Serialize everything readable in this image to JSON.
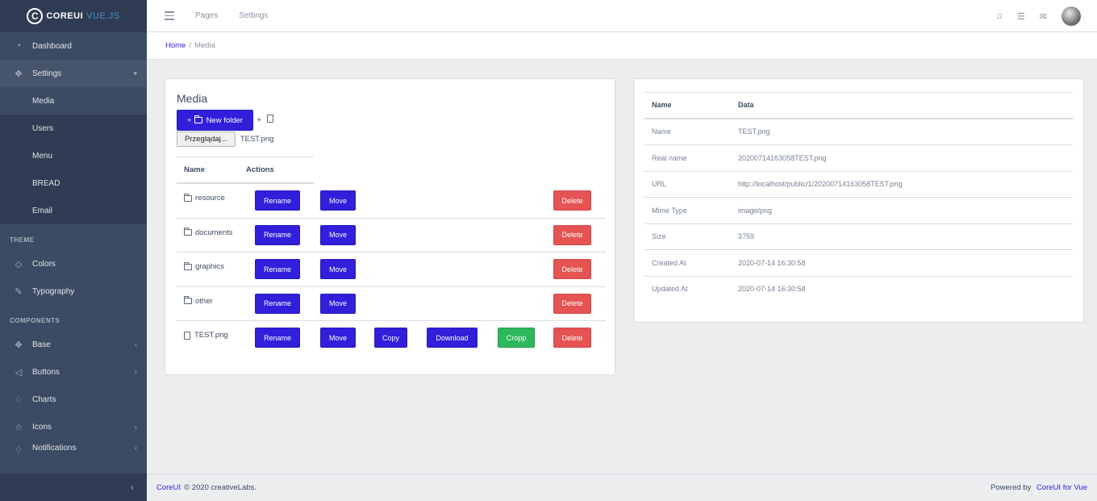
{
  "brand": {
    "core": "COREUI",
    "vue": "VUE.JS"
  },
  "sidebar": {
    "items_top": [
      {
        "label": "Dashboard",
        "icon": "speedometer-icon"
      },
      {
        "label": "Settings",
        "icon": "puzzle-icon"
      }
    ],
    "settings_children": [
      "Media",
      "Users",
      "Menu",
      "BREAD",
      "Email"
    ],
    "theme_title": "THEME",
    "theme_items": [
      {
        "label": "Colors",
        "icon": "drop-icon"
      },
      {
        "label": "Typography",
        "icon": "pencil-icon"
      }
    ],
    "components_title": "COMPONENTS",
    "component_items": [
      {
        "label": "Base",
        "icon": "puzzle-icon"
      },
      {
        "label": "Buttons",
        "icon": "cursor-icon"
      },
      {
        "label": "Charts",
        "icon": "chart-pie-icon"
      },
      {
        "label": "Icons",
        "icon": "star-icon"
      },
      {
        "label": "Notifications",
        "icon": "bell-icon"
      }
    ]
  },
  "header": {
    "links": [
      "Pages",
      "Settings"
    ]
  },
  "breadcrumb": {
    "home": "Home",
    "separator": "/",
    "current": "Media"
  },
  "media": {
    "title": "Media",
    "new_folder_label": "New folder",
    "browse_label": "Przeglądaj...",
    "selected_file": "TEST.png",
    "columns": [
      "Name",
      "Actions"
    ],
    "rows": [
      {
        "name": "resource",
        "type": "folder"
      },
      {
        "name": "documents",
        "type": "folder"
      },
      {
        "name": "graphics",
        "type": "folder"
      },
      {
        "name": "other",
        "type": "folder"
      },
      {
        "name": "TEST.png",
        "type": "file"
      }
    ],
    "actions": {
      "rename": "Rename",
      "move": "Move",
      "copy": "Copy",
      "download": "Download",
      "cropp": "Cropp",
      "delete": "Delete"
    }
  },
  "details": {
    "head": {
      "k": "Name",
      "v": "Data"
    },
    "rows": [
      {
        "k": "Name",
        "v": "TEST.png"
      },
      {
        "k": "Real name",
        "v": "20200714163058TEST.png"
      },
      {
        "k": "URL",
        "v": "http://localhost/public/1/20200714163058TEST.png"
      },
      {
        "k": "Mime Type",
        "v": "image/png"
      },
      {
        "k": "Size",
        "v": "3759"
      },
      {
        "k": "Created At",
        "v": "2020-07-14 16:30:58"
      },
      {
        "k": "Updated At",
        "v": "2020-07-14 16:30:58"
      }
    ]
  },
  "footer": {
    "brand": "CoreUI",
    "copyright": "© 2020 creativeLabs.",
    "powered_by": "Powered by",
    "powered_link": "CoreUI for Vue"
  },
  "colors": {
    "primary": "#321fdb",
    "success": "#2eb85c",
    "danger": "#e55353",
    "sidebar": "#3c4b64"
  }
}
